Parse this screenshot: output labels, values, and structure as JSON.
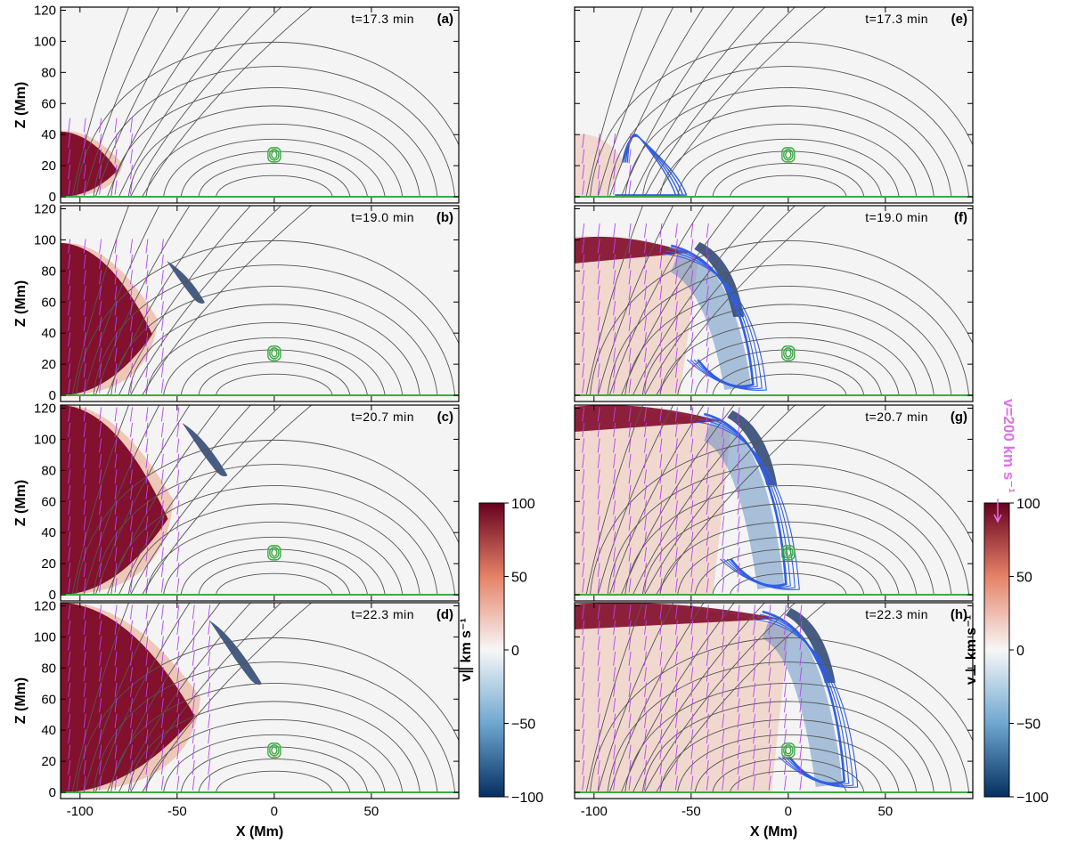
{
  "chart_data": {
    "type": "heatmap",
    "x_axis": {
      "label": "X (Mm)",
      "range": [
        -110,
        95
      ],
      "ticks": [
        -100,
        -50,
        0,
        50
      ],
      "tick_labels": [
        "-100",
        "-50",
        "0",
        "50"
      ]
    },
    "y_axis": {
      "label": "Z (Mm)",
      "range": [
        -4,
        122
      ],
      "ticks": [
        0,
        20,
        40,
        60,
        80,
        100,
        120
      ],
      "tick_labels": [
        "0",
        "20",
        "40",
        "60",
        "80",
        "100",
        "120"
      ]
    },
    "colorbar_ticks": [
      100,
      50,
      0,
      -50,
      -100
    ],
    "colorbar_tick_labels": [
      "100",
      "50",
      "0",
      "−50",
      "−100"
    ],
    "colorbars": [
      {
        "quantity": "parallel",
        "label": "v∥ km s⁻¹",
        "range": [
          -100,
          100
        ]
      },
      {
        "quantity": "perpendicular",
        "label": "v⊥ km s⁻¹",
        "range": [
          -100,
          100
        ]
      }
    ],
    "vector_legend": {
      "label": "v=200 km s⁻¹",
      "value": 200,
      "color": "#e070e8"
    },
    "columns": [
      {
        "quantity": "parallel",
        "panels": [
          {
            "id": "a",
            "label": "(a)",
            "time": "t=17.3 min",
            "time_min": 17.3,
            "front_x": -78,
            "front_top_z": 42
          },
          {
            "id": "b",
            "label": "(b)",
            "time": "t=19.0 min",
            "time_min": 19.0,
            "front_x": -60,
            "front_top_z": 98
          },
          {
            "id": "c",
            "label": "(c)",
            "time": "t=20.7 min",
            "time_min": 20.7,
            "front_x": -52,
            "front_top_z": 122
          },
          {
            "id": "d",
            "label": "(d)",
            "time": "t=22.3 min",
            "time_min": 22.3,
            "front_x": -38,
            "front_top_z": 122
          }
        ]
      },
      {
        "quantity": "perpendicular",
        "panels": [
          {
            "id": "e",
            "label": "(e)",
            "time": "t=17.3 min",
            "time_min": 17.3,
            "front_x": -80,
            "front_top_z": 40
          },
          {
            "id": "f",
            "label": "(f)",
            "time": "t=19.0 min",
            "time_min": 19.0,
            "front_x": -42,
            "front_top_z": 102
          },
          {
            "id": "g",
            "label": "(g)",
            "time": "t=20.7 min",
            "time_min": 20.7,
            "front_x": -25,
            "front_top_z": 122
          },
          {
            "id": "h",
            "label": "(h)",
            "time": "t=22.3 min",
            "time_min": 22.3,
            "front_x": 5,
            "front_top_z": 122
          }
        ]
      }
    ],
    "flux_rope_center": {
      "x": 0,
      "z": 27
    },
    "colors": {
      "strong_positive": "#7a0020",
      "positive": "#e8906e",
      "negative": "#4a7fb8",
      "strong_negative": "#0c2a5e",
      "field_lines": "#555555",
      "contours": "#2f5fe8",
      "rope": "#3caa46",
      "vectors": "#b545f0"
    }
  }
}
